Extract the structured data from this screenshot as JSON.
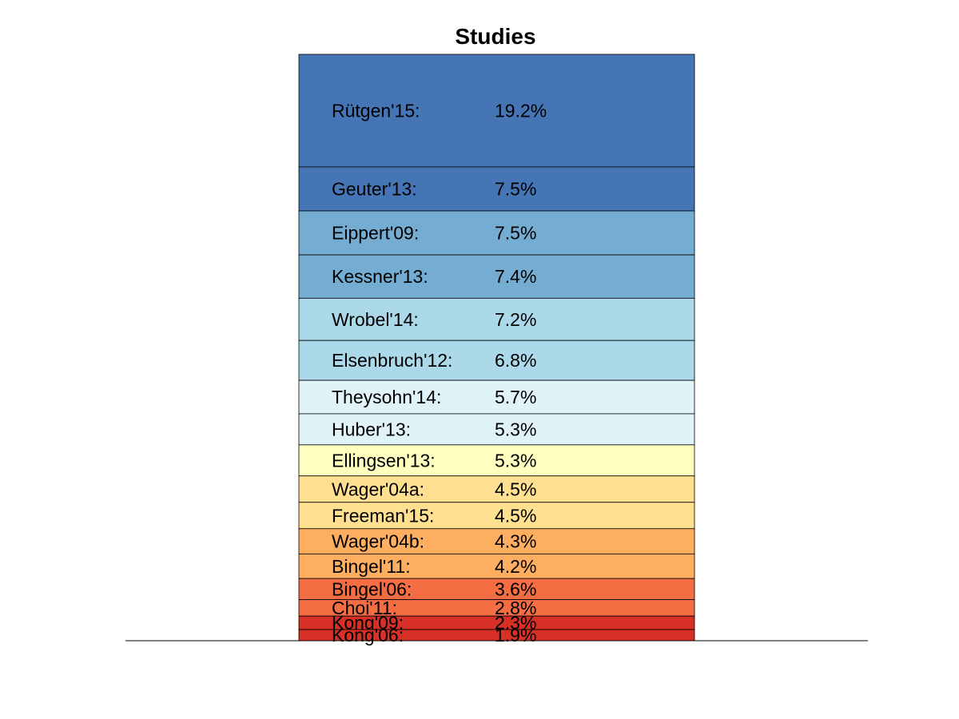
{
  "chart_data": {
    "type": "bar",
    "subtype": "stacked-single-column",
    "title": "Studies",
    "xlabel": "",
    "ylabel": "",
    "grid": false,
    "legend": "none",
    "segment_order": "top-to-bottom",
    "segments": [
      {
        "label": "Rütgen'15:",
        "value_text": "19.2%",
        "value": 19.2,
        "color": "#4575b4"
      },
      {
        "label": "Geuter'13:",
        "value_text": "7.5%",
        "value": 7.5,
        "color": "#4575b4"
      },
      {
        "label": "Eippert'09:",
        "value_text": "7.5%",
        "value": 7.5,
        "color": "#74add1"
      },
      {
        "label": "Kessner'13:",
        "value_text": "7.4%",
        "value": 7.4,
        "color": "#74add1"
      },
      {
        "label": "Wrobel'14:",
        "value_text": "7.2%",
        "value": 7.2,
        "color": "#abd9e9"
      },
      {
        "label": "Elsenbruch'12:",
        "value_text": "6.8%",
        "value": 6.8,
        "color": "#abd9e9"
      },
      {
        "label": "Theysohn'14:",
        "value_text": "5.7%",
        "value": 5.7,
        "color": "#e0f3f8"
      },
      {
        "label": "Huber'13:",
        "value_text": "5.3%",
        "value": 5.3,
        "color": "#e0f3f8"
      },
      {
        "label": "Ellingsen'13:",
        "value_text": "5.3%",
        "value": 5.3,
        "color": "#ffffbf"
      },
      {
        "label": "Wager'04a:",
        "value_text": "4.5%",
        "value": 4.5,
        "color": "#fee090"
      },
      {
        "label": "Freeman'15:",
        "value_text": "4.5%",
        "value": 4.5,
        "color": "#fee090"
      },
      {
        "label": "Wager'04b:",
        "value_text": "4.3%",
        "value": 4.3,
        "color": "#fdae61"
      },
      {
        "label": "Bingel'11:",
        "value_text": "4.2%",
        "value": 4.2,
        "color": "#fdae61"
      },
      {
        "label": "Bingel'06:",
        "value_text": "3.6%",
        "value": 3.6,
        "color": "#f46d43"
      },
      {
        "label": "Choi'11:",
        "value_text": "2.8%",
        "value": 2.8,
        "color": "#f46d43"
      },
      {
        "label": "Kong'09:",
        "value_text": "2.3%",
        "value": 2.3,
        "color": "#d73027"
      },
      {
        "label": "Kong'06:",
        "value_text": "1.9%",
        "value": 1.9,
        "color": "#d73027"
      }
    ]
  }
}
